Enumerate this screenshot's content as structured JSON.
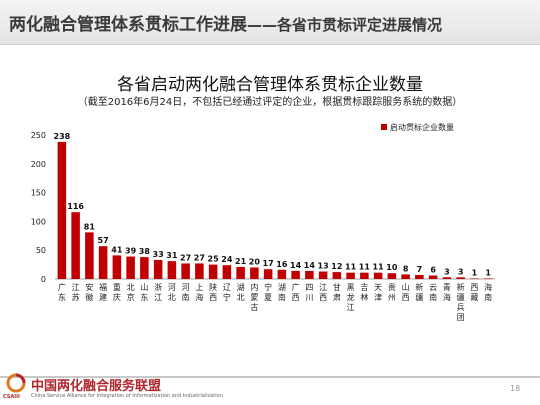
{
  "header": {
    "title": "两化融合管理体系贯标工作进展",
    "subtitle": "——各省市贯标评定进展情况"
  },
  "footer": {
    "org_name": "中国两化融合服务联盟",
    "org_en": "China Service Alliance for Integration of Informatization and Industrialization",
    "logo_text": "CSAIII",
    "page_number": "18"
  },
  "colors": {
    "bar": "#c00000",
    "header_text": "#3a3a3a",
    "brand": "#b0262b"
  },
  "chart_data": {
    "type": "bar",
    "title": "各省启动两化融合管理体系贯标企业数量",
    "subtitle": "（截至2016年6月24日，不包括已经通过评定的企业，根据贯标跟踪服务系统的数据）",
    "legend": {
      "label": "启动贯标企业数量",
      "position": "top-right"
    },
    "grid": false,
    "ylim": [
      0,
      250
    ],
    "yticks": [
      0,
      50,
      100,
      150,
      200,
      250
    ],
    "categories": [
      "广东",
      "江苏",
      "安徽",
      "福建",
      "重庆",
      "北京",
      "山东",
      "浙江",
      "河北",
      "河南",
      "上海",
      "陕西",
      "辽宁",
      "湖北",
      "内蒙古",
      "宁夏",
      "湖南",
      "广西",
      "四川",
      "江西",
      "甘肃",
      "黑龙江",
      "吉林",
      "天津",
      "贵州",
      "山西",
      "新疆",
      "云南",
      "青海",
      "新疆兵团",
      "西藏",
      "海南"
    ],
    "values": [
      238,
      116,
      81,
      57,
      41,
      39,
      38,
      33,
      31,
      27,
      27,
      25,
      24,
      21,
      20,
      17,
      16,
      14,
      14,
      13,
      12,
      11,
      11,
      11,
      10,
      8,
      7,
      6,
      3,
      3,
      1,
      1
    ]
  }
}
